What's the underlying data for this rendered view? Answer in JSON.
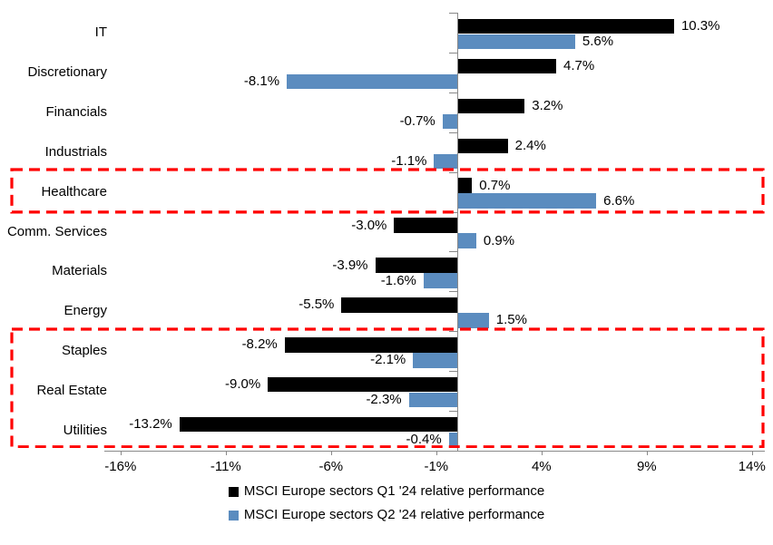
{
  "chart_data": {
    "type": "bar",
    "orientation": "horizontal",
    "title": "",
    "categories": [
      "IT",
      "Discretionary",
      "Financials",
      "Industrials",
      "Healthcare",
      "Comm. Services",
      "Materials",
      "Energy",
      "Staples",
      "Real Estate",
      "Utilities"
    ],
    "series": [
      {
        "name": "MSCI Europe sectors Q1 '24 relative performance",
        "color": "#000000",
        "values": [
          10.3,
          4.7,
          3.2,
          2.4,
          0.7,
          -3.0,
          -3.9,
          -5.5,
          -8.2,
          -9.0,
          -13.2
        ]
      },
      {
        "name": "MSCI Europe sectors Q2 '24 relative performance",
        "color": "#5B8CBF",
        "values": [
          5.6,
          -8.1,
          -0.7,
          -1.1,
          6.6,
          0.9,
          -1.6,
          1.5,
          -2.1,
          -2.3,
          -0.4
        ]
      }
    ],
    "value_label_format": "one_decimal_percent",
    "x_tick_values": [
      -16,
      -11,
      -6,
      -1,
      4,
      9,
      14
    ],
    "x_tick_labels": [
      "-16%",
      "-11%",
      "-6%",
      "-1%",
      "4%",
      "9%",
      "14%"
    ],
    "xlim": [
      -16.8,
      14.6
    ],
    "grid": false,
    "legend_position": "bottom",
    "highlight_color": "#FF0000",
    "highlights": [
      {
        "style": "red-dashed-box",
        "categories": [
          "Healthcare"
        ]
      },
      {
        "style": "red-dashed-box",
        "categories": [
          "Staples",
          "Real Estate",
          "Utilities"
        ]
      }
    ]
  }
}
